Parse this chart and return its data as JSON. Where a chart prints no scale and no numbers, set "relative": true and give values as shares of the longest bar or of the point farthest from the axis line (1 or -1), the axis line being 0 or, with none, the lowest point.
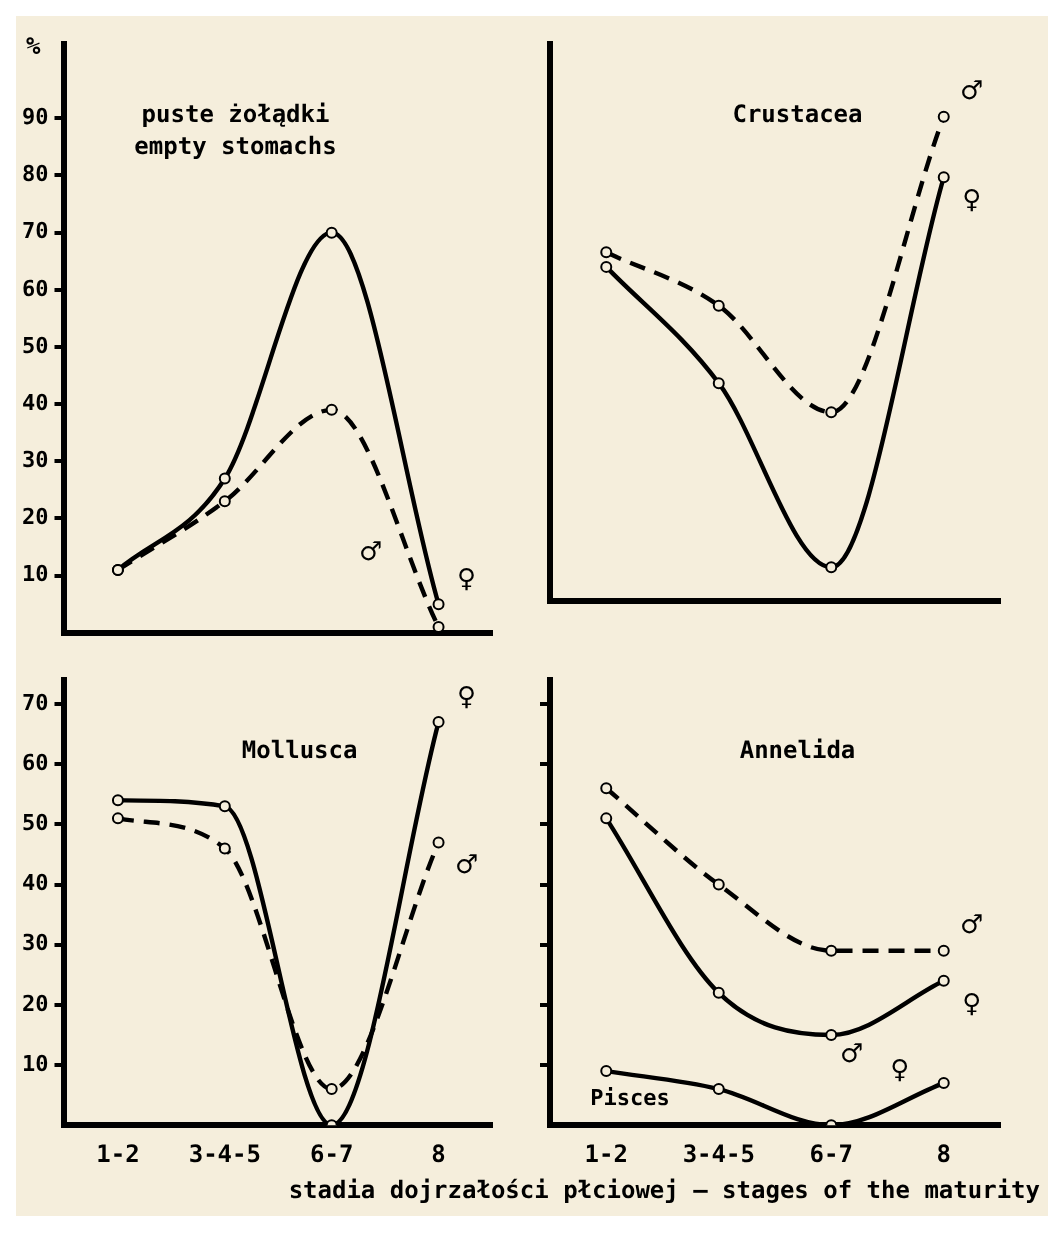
{
  "chart_data": [
    {
      "type": "line",
      "title": "puste żołądki",
      "subtitle": "empty stomachs",
      "ylabel": "%",
      "categories": [
        null,
        null,
        null,
        null
      ],
      "ylim": [
        0,
        103
      ],
      "yticks": [
        10,
        20,
        30,
        40,
        50,
        60,
        70,
        80,
        90
      ],
      "tick_labels": "y",
      "grid": false,
      "legend": false,
      "marker": "circle",
      "series": [
        {
          "name": "♀",
          "color": "#000000",
          "line_style": "solid",
          "values": [
            11,
            27,
            70,
            5
          ]
        },
        {
          "name": "♂",
          "color": "#000000",
          "line_style": "dashed",
          "values": [
            11,
            23,
            39,
            1
          ]
        }
      ]
    },
    {
      "type": "line",
      "title": "Crustacea",
      "categories": [
        null,
        null,
        null,
        null
      ],
      "relative": true,
      "grid": false,
      "legend": false,
      "marker": "circle",
      "series": [
        {
          "name": "♀",
          "color": "#000000",
          "line_style": "solid",
          "values": [
            0.69,
            0.45,
            0.07,
            0.875
          ]
        },
        {
          "name": "♂",
          "color": "#000000",
          "line_style": "dashed",
          "values": [
            0.72,
            0.61,
            0.39,
            1
          ]
        }
      ]
    },
    {
      "type": "line",
      "title": "Mollusca",
      "xlabel": "stadia dojrzałości płciowej — stages of the maturity",
      "categories": [
        "1-2",
        "3-4-5",
        "6-7",
        "8"
      ],
      "ylim": [
        0,
        74
      ],
      "yticks": [
        10,
        20,
        30,
        40,
        50,
        60,
        70
      ],
      "grid": false,
      "legend": false,
      "marker": "circle",
      "series": [
        {
          "name": "♀",
          "color": "#000000",
          "line_style": "solid",
          "values": [
            54,
            53,
            0,
            67
          ]
        },
        {
          "name": "♂",
          "color": "#000000",
          "line_style": "dashed",
          "values": [
            51,
            46,
            6,
            47
          ]
        }
      ]
    },
    {
      "type": "line",
      "title": "Annelida",
      "categories": [
        "1-2",
        "3-4-5",
        "6-7",
        "8"
      ],
      "ylim": [
        0,
        74
      ],
      "yticks": [
        10,
        20,
        30,
        40,
        50,
        60,
        70
      ],
      "tick_labels": "x",
      "grid": false,
      "legend": false,
      "marker": "circle",
      "annotations": [
        "♂",
        "♀"
      ],
      "series": [
        {
          "name": "♀",
          "color": "#000000",
          "line_style": "solid",
          "values": [
            51,
            22,
            15,
            24
          ]
        },
        {
          "name": "♂",
          "color": "#000000",
          "line_style": "dashed",
          "values": [
            56,
            40,
            29,
            29
          ]
        },
        {
          "name": "Pisces",
          "color": "#000000",
          "line_style": "solid",
          "values": [
            9,
            6,
            0,
            7
          ]
        }
      ]
    }
  ]
}
